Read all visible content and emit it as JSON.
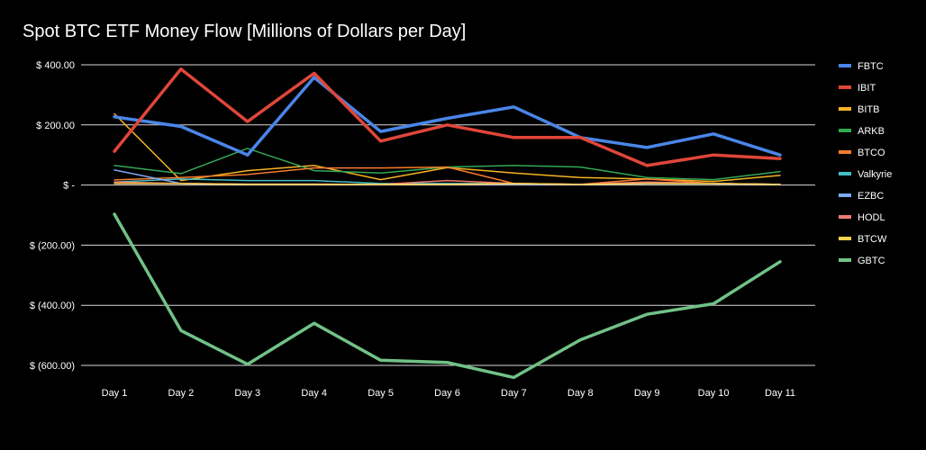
{
  "chart_data": {
    "type": "line",
    "title": "Spot BTC ETF Money Flow [Millions of Dollars per Day]",
    "categories": [
      "Day 1",
      "Day 2",
      "Day 3",
      "Day 4",
      "Day 5",
      "Day 6",
      "Day 7",
      "Day 8",
      "Day 9",
      "Day 10",
      "Day 11"
    ],
    "ylim": [
      -600,
      400
    ],
    "yticks": [
      400,
      200,
      0,
      -200,
      -400,
      -600
    ],
    "ytick_labels": [
      "$ 400.00",
      "$ 200.00",
      "$ -",
      "$ (200.00)",
      "$ (400.00)",
      "$ (600.00)"
    ],
    "grid": true,
    "legend_position": "right",
    "series": [
      {
        "name": "FBTC",
        "color": "#4a86e8",
        "width": 3.5,
        "values": [
          227,
          195,
          100,
          358,
          178,
          222,
          260,
          158,
          125,
          170,
          100
        ]
      },
      {
        "name": "IBIT",
        "color": "#e0463a",
        "width": 3.5,
        "values": [
          112,
          386,
          211,
          372,
          146,
          200,
          158,
          158,
          65,
          100,
          88
        ]
      },
      {
        "name": "BITB",
        "color": "#f6b324",
        "width": 1.5,
        "values": [
          237,
          15,
          48,
          65,
          18,
          58,
          40,
          25,
          20,
          12,
          32
        ]
      },
      {
        "name": "ARKB",
        "color": "#34a853",
        "width": 1.5,
        "values": [
          65,
          38,
          122,
          48,
          40,
          60,
          65,
          60,
          25,
          18,
          45
        ]
      },
      {
        "name": "BTCO",
        "color": "#f57c2a",
        "width": 1.5,
        "values": [
          17,
          25,
          35,
          57,
          57,
          60,
          5,
          2,
          20,
          5,
          2
        ]
      },
      {
        "name": "Valkyrie",
        "color": "#46bdc6",
        "width": 1.5,
        "values": [
          10,
          20,
          15,
          15,
          5,
          5,
          5,
          2,
          5,
          5,
          2
        ]
      },
      {
        "name": "EZBC",
        "color": "#7baaf7",
        "width": 1.5,
        "values": [
          50,
          5,
          3,
          3,
          2,
          3,
          3,
          2,
          5,
          5,
          2
        ]
      },
      {
        "name": "HODL",
        "color": "#f07b72",
        "width": 1.5,
        "values": [
          10,
          5,
          3,
          3,
          2,
          15,
          5,
          2,
          10,
          5,
          2
        ]
      },
      {
        "name": "BTCW",
        "color": "#fcd04f",
        "width": 1.5,
        "values": [
          5,
          5,
          2,
          2,
          2,
          2,
          5,
          2,
          5,
          5,
          2
        ]
      },
      {
        "name": "GBTC",
        "color": "#71c287",
        "width": 3.5,
        "values": [
          -97,
          -484,
          -596,
          -460,
          -583,
          -590,
          -640,
          -515,
          -430,
          -395,
          -255
        ]
      }
    ]
  }
}
